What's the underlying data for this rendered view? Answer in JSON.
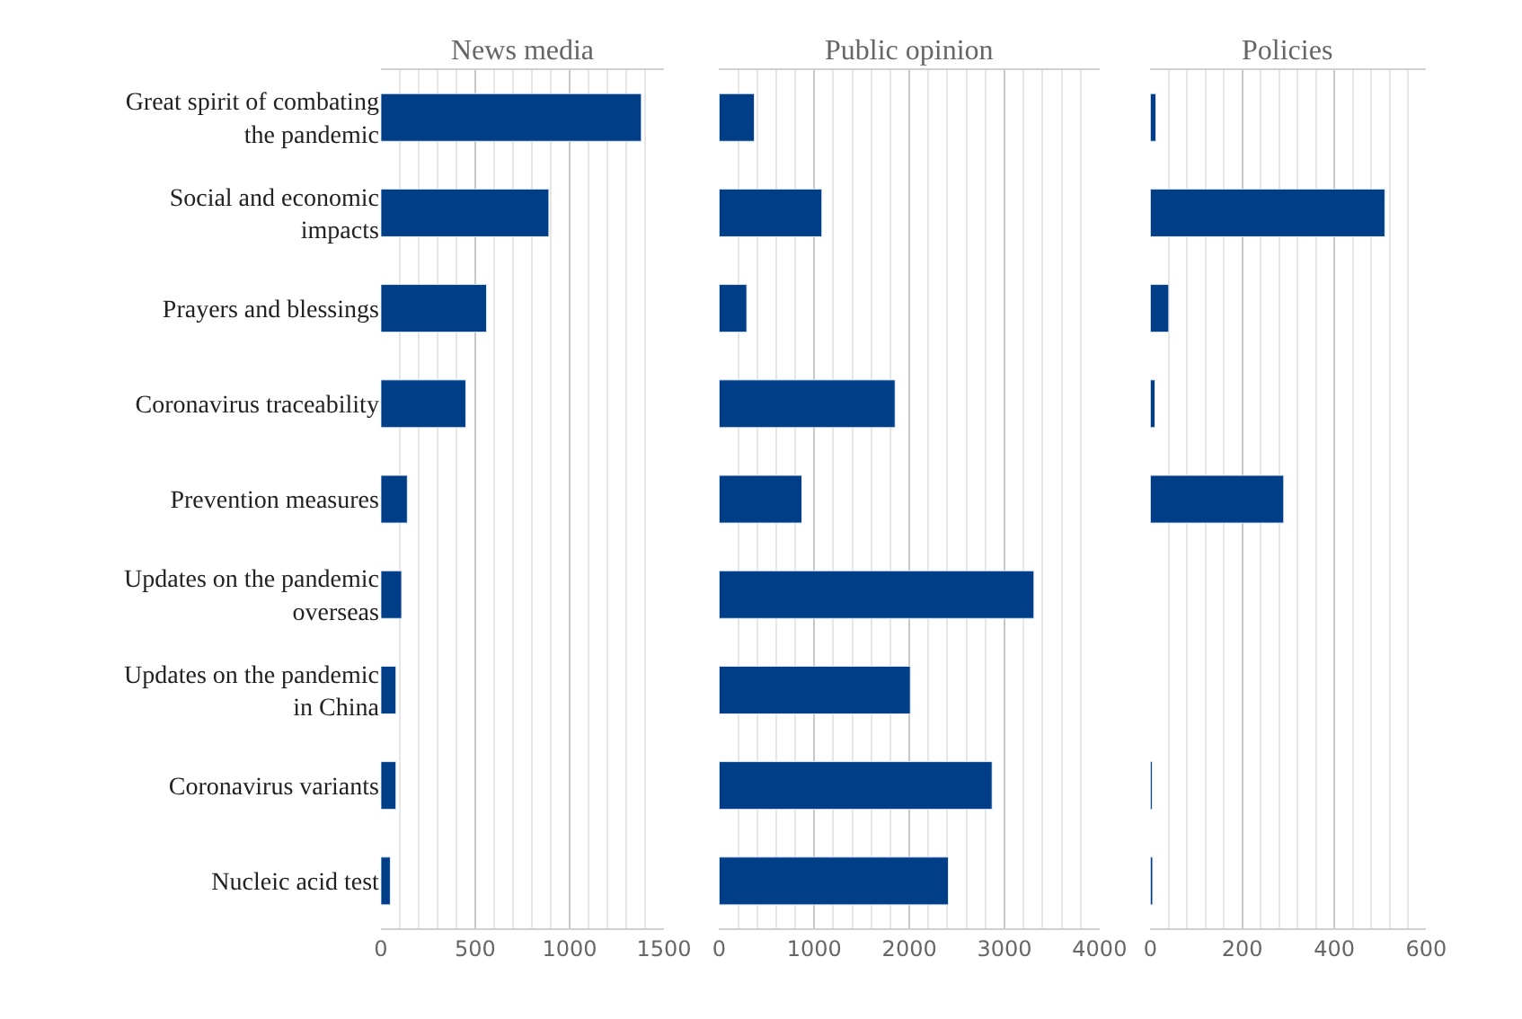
{
  "chart_data": [
    {
      "type": "bar",
      "orientation": "horizontal",
      "title": "News media",
      "categories": [
        "Great spirit of combating the pandemic",
        "Social and economic impacts",
        "Prayers and blessings",
        "Coronavirus traceability",
        "Prevention measures",
        "Updates on the pandemic overseas",
        "Updates on the pandemic in China",
        "Coronavirus variants",
        "Nucleic acid test"
      ],
      "values": [
        1380,
        890,
        560,
        450,
        140,
        110,
        80,
        80,
        50
      ],
      "color": "#003f87",
      "xlim": [
        0,
        1500
      ],
      "xticks": [
        0,
        500,
        1000,
        1500
      ],
      "grid": "x"
    },
    {
      "type": "bar",
      "orientation": "horizontal",
      "title": "Public opinion",
      "categories": [
        "Great spirit of combating the pandemic",
        "Social and economic impacts",
        "Prayers and blessings",
        "Coronavirus traceability",
        "Prevention measures",
        "Updates on the pandemic overseas",
        "Updates on the pandemic in China",
        "Coronavirus variants",
        "Nucleic acid test"
      ],
      "values": [
        370,
        1080,
        290,
        1850,
        870,
        3310,
        2010,
        2870,
        2410
      ],
      "color": "#003f87",
      "xlim": [
        0,
        4000
      ],
      "xticks": [
        0,
        1000,
        2000,
        3000,
        4000
      ],
      "grid": "x",
      "tick_labels": "x"
    },
    {
      "type": "bar",
      "orientation": "horizontal",
      "title": "Policies",
      "categories": [
        "Great spirit of combating the pandemic",
        "Social and economic impacts",
        "Prayers and blessings",
        "Coronavirus traceability",
        "Prevention measures",
        "Updates on the pandemic overseas",
        "Updates on the pandemic in China",
        "Coronavirus variants",
        "Nucleic acid test"
      ],
      "values": [
        12,
        510,
        40,
        10,
        290,
        null,
        null,
        4,
        5
      ],
      "color": "#003f87",
      "xlim": [
        0,
        600
      ],
      "xticks": [
        0,
        200,
        400,
        600
      ],
      "grid": "x",
      "tick_labels": "x"
    }
  ]
}
